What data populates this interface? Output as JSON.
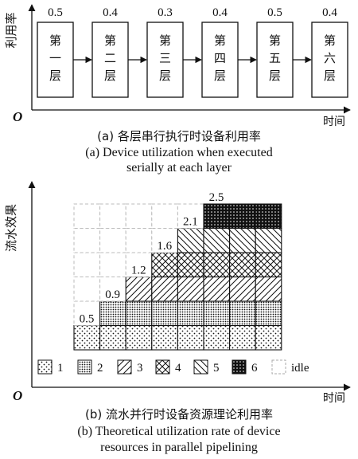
{
  "part_a": {
    "y_axis_label": "利用率",
    "x_axis_label": "时间",
    "origin_label": "O",
    "layers": [
      {
        "label": "第一层",
        "utilization": "0.5"
      },
      {
        "label": "第二层",
        "utilization": "0.4"
      },
      {
        "label": "第三层",
        "utilization": "0.3"
      },
      {
        "label": "第四层",
        "utilization": "0.4"
      },
      {
        "label": "第五层",
        "utilization": "0.5"
      },
      {
        "label": "第六层",
        "utilization": "0.4"
      }
    ],
    "caption_cn": "(a) 各层串行执行时设备利用率",
    "caption_en_line1": "(a) Device utilization when executed",
    "caption_en_line2": "serially at each layer"
  },
  "part_b": {
    "y_axis_label": "流水效果",
    "x_axis_label": "时间",
    "origin_label": "O",
    "step_values": [
      "0.5",
      "0.9",
      "1.2",
      "1.6",
      "2.1",
      "2.5"
    ],
    "legend": [
      {
        "label": "1",
        "pattern": "dots-sparse"
      },
      {
        "label": "2",
        "pattern": "dots-dense"
      },
      {
        "label": "3",
        "pattern": "diagonal-forward"
      },
      {
        "label": "4",
        "pattern": "crosshatch"
      },
      {
        "label": "5",
        "pattern": "diagonal-back"
      },
      {
        "label": "6",
        "pattern": "solid-dots"
      },
      {
        "label": "idle",
        "pattern": "dashed-empty"
      }
    ],
    "caption_cn": "(b) 流水并行时设备资源理论利用率",
    "caption_en_line1": "(b) Theoretical utilization rate of device",
    "caption_en_line2": "resources in parallel pipelining"
  }
}
